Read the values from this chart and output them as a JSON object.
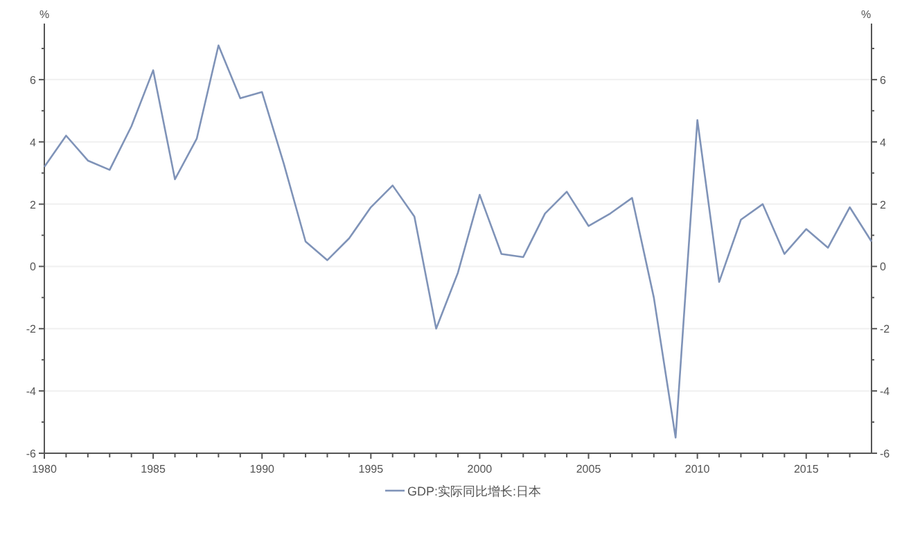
{
  "chart_data": {
    "type": "line",
    "ylabel": "%",
    "y2label": "%",
    "x": [
      1980,
      1981,
      1982,
      1983,
      1984,
      1985,
      1986,
      1987,
      1988,
      1989,
      1990,
      1991,
      1992,
      1993,
      1994,
      1995,
      1996,
      1997,
      1998,
      1999,
      2000,
      2001,
      2002,
      2003,
      2004,
      2005,
      2006,
      2007,
      2008,
      2009,
      2010,
      2011,
      2012,
      2013,
      2014,
      2015,
      2016,
      2017,
      2018
    ],
    "series": [
      {
        "name": "GDP:实际同比增长:日本",
        "color": "#7f93b8",
        "values": [
          3.2,
          4.2,
          3.4,
          3.1,
          4.5,
          6.3,
          2.8,
          4.1,
          7.1,
          5.4,
          5.6,
          3.3,
          0.8,
          0.2,
          0.9,
          1.9,
          2.6,
          1.6,
          -2.0,
          -0.2,
          2.3,
          0.4,
          0.3,
          1.7,
          2.4,
          1.3,
          1.7,
          2.2,
          -1.0,
          -5.5,
          4.7,
          -0.5,
          1.5,
          2.0,
          0.4,
          1.2,
          0.6,
          1.9,
          0.8
        ]
      }
    ],
    "xlim": [
      1980,
      2018
    ],
    "xticks": [
      1980,
      {
        "value": 1981,
        "label": null
      },
      {
        "value": 1982,
        "label": null
      },
      {
        "value": 1983,
        "label": null
      },
      {
        "value": 1984,
        "label": null
      },
      1985,
      {
        "value": 1986,
        "label": null
      },
      {
        "value": 1987,
        "label": null
      },
      {
        "value": 1988,
        "label": null
      },
      {
        "value": 1989,
        "label": null
      },
      1990,
      {
        "value": 1991,
        "label": null
      },
      {
        "value": 1992,
        "label": null
      },
      {
        "value": 1993,
        "label": null
      },
      {
        "value": 1994,
        "label": null
      },
      1995,
      {
        "value": 1996,
        "label": null
      },
      {
        "value": 1997,
        "label": null
      },
      {
        "value": 1998,
        "label": null
      },
      {
        "value": 1999,
        "label": null
      },
      2000,
      {
        "value": 2001,
        "label": null
      },
      {
        "value": 2002,
        "label": null
      },
      {
        "value": 2003,
        "label": null
      },
      {
        "value": 2004,
        "label": null
      },
      2005,
      {
        "value": 2006,
        "label": null
      },
      {
        "value": 2007,
        "label": null
      },
      {
        "value": 2008,
        "label": null
      },
      {
        "value": 2009,
        "label": null
      },
      2010,
      {
        "value": 2011,
        "label": null
      },
      {
        "value": 2012,
        "label": null
      },
      {
        "value": 2013,
        "label": null
      },
      {
        "value": 2014,
        "label": null
      },
      2015,
      {
        "value": 2016,
        "label": null
      },
      {
        "value": 2017,
        "label": null
      }
    ],
    "ylim": [
      -6,
      7.8
    ],
    "yticks": [
      -6,
      {
        "value": -5,
        "label": null
      },
      -4,
      {
        "value": -3,
        "label": null
      },
      -2,
      {
        "value": -1,
        "label": null
      },
      0,
      {
        "value": 1,
        "label": null
      },
      2,
      {
        "value": 3,
        "label": null
      },
      4,
      {
        "value": 5,
        "label": null
      },
      6,
      {
        "value": 7,
        "label": null
      }
    ],
    "y2lim": [
      -6,
      7.8
    ],
    "y2ticks": [
      -6,
      {
        "value": -5,
        "label": null
      },
      -4,
      {
        "value": -3,
        "label": null
      },
      -2,
      {
        "value": -1,
        "label": null
      },
      0,
      {
        "value": 1,
        "label": null
      },
      2,
      {
        "value": 3,
        "label": null
      },
      4,
      {
        "value": 5,
        "label": null
      },
      6,
      {
        "value": 7,
        "label": null
      }
    ],
    "grid": "y",
    "legend": "bottom",
    "line_style": "solid",
    "marker": "none"
  }
}
